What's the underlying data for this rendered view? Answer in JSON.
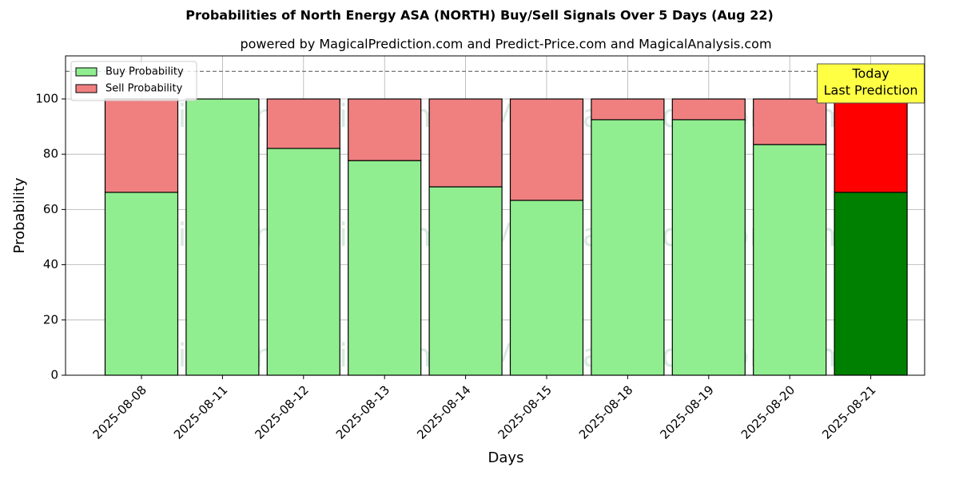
{
  "chart_data": {
    "type": "stacked_bar",
    "title": "Probabilities of North Energy ASA (NORTH) Buy/Sell Signals Over 5 Days (Aug 22)",
    "subtitle": "powered by MagicalPrediction.com and Predict-Price.com and MagicalAnalysis.com",
    "x_label": "Days",
    "y_label": "Probability",
    "categories": [
      "2025-08-08",
      "2025-08-11",
      "2025-08-12",
      "2025-08-13",
      "2025-08-14",
      "2025-08-15",
      "2025-08-18",
      "2025-08-19",
      "2025-08-20",
      "2025-08-21"
    ],
    "series": [
      {
        "name": "Buy Probability",
        "color": "#90ee90",
        "highlight_color": "#008000",
        "values": [
          66.2,
          100,
          82.1,
          77.7,
          68.2,
          63.3,
          92.5,
          92.5,
          83.5,
          66.2
        ]
      },
      {
        "name": "Sell Probability",
        "color": "#f08080",
        "highlight_color": "#ff0000",
        "values": [
          33.8,
          0,
          17.9,
          22.3,
          31.8,
          36.7,
          7.5,
          7.5,
          16.5,
          33.8
        ]
      }
    ],
    "highlight_index": 9,
    "annotation": [
      "Today",
      "Last Prediction"
    ],
    "reference_line": 110,
    "watermarks": [
      "MagicalAnalysis.com",
      "MagicalPrediction.com"
    ],
    "ylim": [
      0,
      115.6
    ],
    "yticks": [
      0,
      20,
      40,
      60,
      80,
      100
    ],
    "grid": true,
    "legend": "upper-left"
  }
}
